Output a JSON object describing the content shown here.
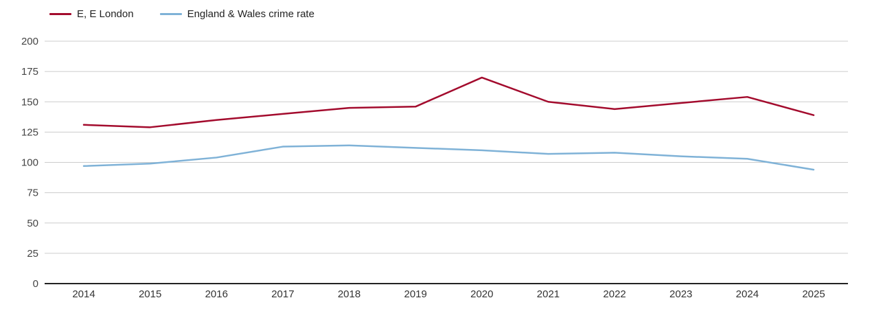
{
  "chart_data": {
    "type": "line",
    "title": "",
    "xlabel": "",
    "ylabel": "",
    "x": [
      2014,
      2015,
      2016,
      2017,
      2018,
      2019,
      2020,
      2021,
      2022,
      2023,
      2024,
      2025
    ],
    "series": [
      {
        "name": "E, E London",
        "color": "#a30b2d",
        "values": [
          131,
          129,
          135,
          140,
          145,
          146,
          170,
          150,
          144,
          149,
          154,
          139
        ]
      },
      {
        "name": "England & Wales crime rate",
        "color": "#7fb2d7",
        "values": [
          97,
          99,
          104,
          113,
          114,
          112,
          110,
          107,
          108,
          105,
          103,
          94
        ]
      }
    ],
    "ylim": [
      0,
      200
    ],
    "ytick_step": 25,
    "yticks": [
      0,
      25,
      50,
      75,
      100,
      125,
      150,
      175,
      200
    ],
    "grid": "horizontal",
    "legend_position": "top-left",
    "colors": {
      "gridline": "#cccccc",
      "axis_line": "#222222",
      "y_tick_text": "#444444",
      "x_tick_text": "#333333"
    }
  }
}
